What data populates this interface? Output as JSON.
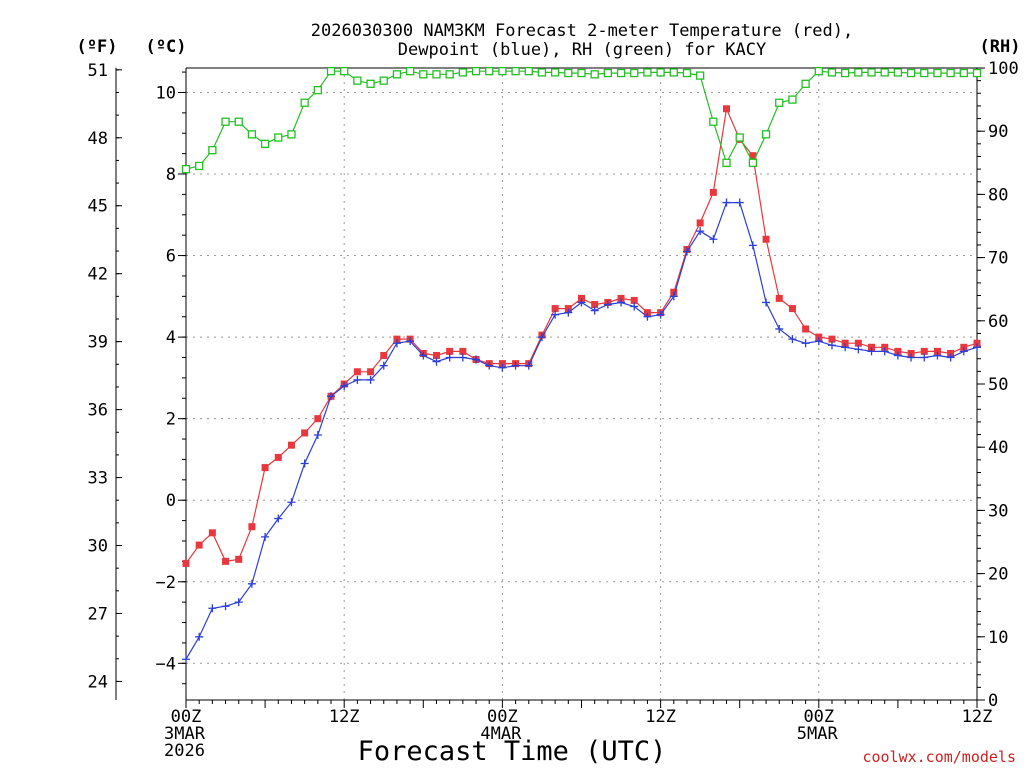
{
  "chart_data": {
    "type": "line",
    "title": [
      "2026030300 NAM3KM Forecast 2-meter Temperature (red),",
      "Dewpoint (blue), RH (green) for KACY"
    ],
    "xlabel": "Forecast Time (UTC)",
    "credit": "coolwx.com/models",
    "unit_labels": {
      "f": "(ºF)",
      "c": "(ºC)",
      "rh": "(RH)"
    },
    "x_range": [
      0,
      60
    ],
    "x_ticks": [
      {
        "hour": 0,
        "lines": [
          "00Z",
          "3MAR",
          "2026"
        ]
      },
      {
        "hour": 12,
        "lines": [
          "12Z"
        ]
      },
      {
        "hour": 24,
        "lines": [
          "00Z",
          "4MAR"
        ]
      },
      {
        "hour": 36,
        "lines": [
          "12Z"
        ]
      },
      {
        "hour": 48,
        "lines": [
          "00Z",
          "5MAR"
        ]
      },
      {
        "hour": 60,
        "lines": [
          "12Z"
        ]
      }
    ],
    "celsius_axis": {
      "range": [
        -4.9,
        10.6
      ],
      "ticks": [
        -4,
        -2,
        0,
        2,
        4,
        6,
        8,
        10
      ]
    },
    "fahrenheit_axis": {
      "ticks": [
        24,
        27,
        30,
        33,
        36,
        39,
        42,
        45,
        48,
        51
      ]
    },
    "rh_axis": {
      "range": [
        0,
        100
      ],
      "ticks": [
        0,
        10,
        20,
        30,
        40,
        50,
        60,
        70,
        80,
        90,
        100
      ]
    },
    "colors": {
      "temperature": "#e8383d",
      "dewpoint": "#2b3fd8",
      "rh": "#22c022",
      "grid": "#9a9a9a",
      "axis": "#000000"
    },
    "series": [
      {
        "name": "Temperature",
        "unit": "C",
        "color": "#e8383d",
        "marker": "square-filled",
        "hours": [
          0,
          1,
          2,
          3,
          4,
          5,
          6,
          7,
          8,
          9,
          10,
          11,
          12,
          13,
          14,
          15,
          16,
          17,
          18,
          19,
          20,
          21,
          22,
          23,
          24,
          25,
          26,
          27,
          28,
          29,
          30,
          31,
          32,
          33,
          34,
          35,
          36,
          37,
          38,
          39,
          40,
          41,
          42,
          43,
          44,
          45,
          46,
          47,
          48,
          49,
          50,
          51,
          52,
          53,
          54,
          55,
          56,
          57,
          58,
          59,
          60
        ],
        "values": [
          -1.55,
          -1.1,
          -0.8,
          -1.5,
          -1.45,
          -0.65,
          0.8,
          1.05,
          1.35,
          1.65,
          2.0,
          2.55,
          2.85,
          3.15,
          3.15,
          3.55,
          3.95,
          3.95,
          3.6,
          3.55,
          3.65,
          3.65,
          3.45,
          3.35,
          3.35,
          3.35,
          3.35,
          4.05,
          4.7,
          4.7,
          4.95,
          4.8,
          4.85,
          4.95,
          4.9,
          4.6,
          4.6,
          5.1,
          6.15,
          6.8,
          7.55,
          9.6,
          8.85,
          8.45,
          6.4,
          4.95,
          4.7,
          4.2,
          4.0,
          3.95,
          3.85,
          3.85,
          3.75,
          3.75,
          3.65,
          3.6,
          3.65,
          3.65,
          3.6,
          3.75,
          3.85
        ]
      },
      {
        "name": "Dewpoint",
        "unit": "C",
        "color": "#2b3fd8",
        "marker": "plus",
        "hours": [
          0,
          1,
          2,
          3,
          4,
          5,
          6,
          7,
          8,
          9,
          10,
          11,
          12,
          13,
          14,
          15,
          16,
          17,
          18,
          19,
          20,
          21,
          22,
          23,
          24,
          25,
          26,
          27,
          28,
          29,
          30,
          31,
          32,
          33,
          34,
          35,
          36,
          37,
          38,
          39,
          40,
          41,
          42,
          43,
          44,
          45,
          46,
          47,
          48,
          49,
          50,
          51,
          52,
          53,
          54,
          55,
          56,
          57,
          58,
          59,
          60
        ],
        "values": [
          -3.9,
          -3.35,
          -2.65,
          -2.6,
          -2.5,
          -2.05,
          -0.9,
          -0.45,
          -0.05,
          0.9,
          1.6,
          2.55,
          2.8,
          2.95,
          2.95,
          3.3,
          3.85,
          3.9,
          3.55,
          3.4,
          3.5,
          3.5,
          3.45,
          3.3,
          3.25,
          3.3,
          3.3,
          4.0,
          4.55,
          4.6,
          4.85,
          4.65,
          4.8,
          4.85,
          4.75,
          4.5,
          4.55,
          5.0,
          6.1,
          6.6,
          6.4,
          7.3,
          7.3,
          6.25,
          4.85,
          4.2,
          3.95,
          3.85,
          3.9,
          3.8,
          3.75,
          3.7,
          3.65,
          3.65,
          3.55,
          3.5,
          3.5,
          3.55,
          3.5,
          3.65,
          3.75
        ]
      },
      {
        "name": "Relative Humidity",
        "unit": "%",
        "color": "#22c022",
        "marker": "square-open",
        "hours": [
          0,
          1,
          2,
          3,
          4,
          5,
          6,
          7,
          8,
          9,
          10,
          11,
          12,
          13,
          14,
          15,
          16,
          17,
          18,
          19,
          20,
          21,
          22,
          23,
          24,
          25,
          26,
          27,
          28,
          29,
          30,
          31,
          32,
          33,
          34,
          35,
          36,
          37,
          38,
          39,
          40,
          41,
          42,
          43,
          44,
          45,
          46,
          47,
          48,
          49,
          50,
          51,
          52,
          53,
          54,
          55,
          56,
          57,
          58,
          59,
          60
        ],
        "values": [
          84,
          84.5,
          87,
          91.5,
          91.5,
          89.5,
          88,
          89,
          89.5,
          94.5,
          96.5,
          99.5,
          99.5,
          98,
          97.5,
          98,
          99,
          99.5,
          99,
          99,
          99,
          99.3,
          99.5,
          99.5,
          99.5,
          99.5,
          99.5,
          99.3,
          99.3,
          99.2,
          99.2,
          99,
          99.2,
          99.2,
          99.2,
          99.3,
          99.3,
          99.3,
          99.2,
          98.8,
          91.5,
          85,
          89,
          85,
          89.5,
          94.5,
          95,
          97.5,
          99.5,
          99.3,
          99.2,
          99.3,
          99.3,
          99.3,
          99.3,
          99.2,
          99.2,
          99.2,
          99.2,
          99.2,
          99.2
        ]
      }
    ]
  }
}
